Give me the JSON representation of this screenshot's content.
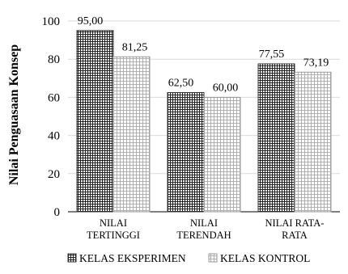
{
  "chart_data": {
    "type": "bar",
    "ylabel": "Nilai Penguasaan Konsep",
    "ylim": [
      0,
      100
    ],
    "yticks": [
      0,
      20,
      40,
      60,
      80,
      100
    ],
    "grid": true,
    "legend_position": "bottom",
    "categories": [
      [
        "NILAI",
        "TERTINGGI"
      ],
      [
        "NILAI",
        "TERENDAH"
      ],
      [
        "NILAI RATA-",
        "RATA"
      ]
    ],
    "series": [
      {
        "name": "KELAS EKSPERIMEN",
        "values": [
          95.0,
          62.5,
          77.55
        ],
        "labels": [
          "95,00",
          "62,50",
          "77,55"
        ],
        "pattern": "dense-grid",
        "color": "#000000"
      },
      {
        "name": "KELAS KONTROL",
        "values": [
          81.25,
          60.0,
          73.19
        ],
        "labels": [
          "81,25",
          "60,00",
          "73,19"
        ],
        "pattern": "light-grid",
        "color": "#808080"
      }
    ]
  }
}
